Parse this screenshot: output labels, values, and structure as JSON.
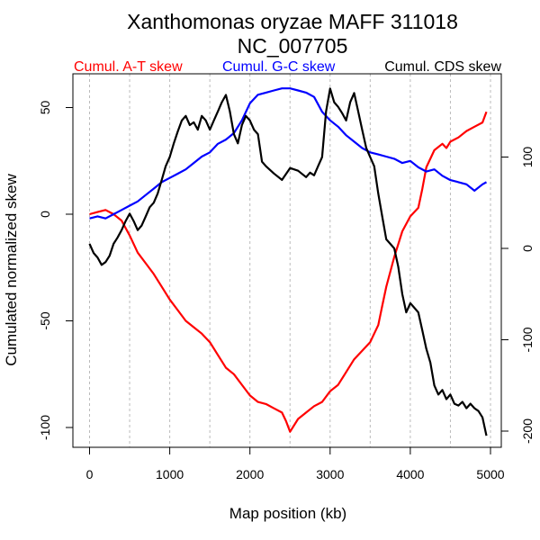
{
  "chart_data": {
    "type": "line",
    "title": "Xanthomonas oryzae MAFF 311018",
    "subtitle": "NC_007705",
    "xlabel": "Map position (kb)",
    "ylabel": "Cumulated normalized skew",
    "xlim": [
      0,
      5000
    ],
    "ylim_left": [
      -105,
      62
    ],
    "ylim_right": [
      -210,
      215
    ],
    "x_ticks": [
      "0",
      "1000",
      "2000",
      "3000",
      "4000",
      "5000"
    ],
    "x_tick_values": [
      0,
      1000,
      2000,
      3000,
      4000,
      5000
    ],
    "y_left_ticks": [
      "50",
      "0",
      "-50",
      "-100"
    ],
    "y_left_tick_values": [
      50,
      0,
      -50,
      -100
    ],
    "y_right_ticks": [
      "100",
      "0",
      "-100",
      "-200"
    ],
    "y_right_tick_values": [
      100,
      0,
      -100,
      -200
    ],
    "grid": "vertical dashed every 500 kb",
    "legend_placement": "top",
    "series": [
      {
        "name": "Cumul. A-T skew",
        "color": "#ff0000",
        "axis": "left",
        "x": [
          0,
          100,
          200,
          300,
          400,
          500,
          600,
          700,
          800,
          900,
          1000,
          1100,
          1200,
          1300,
          1400,
          1500,
          1600,
          1700,
          1800,
          1900,
          2000,
          2100,
          2200,
          2300,
          2400,
          2450,
          2500,
          2600,
          2700,
          2800,
          2900,
          3000,
          3100,
          3200,
          3300,
          3400,
          3500,
          3600,
          3650,
          3700,
          3800,
          3900,
          4000,
          4100,
          4150,
          4200,
          4300,
          4400,
          4450,
          4500,
          4600,
          4700,
          4800,
          4900,
          4950
        ],
        "values": [
          0,
          1,
          2,
          0,
          -3,
          -10,
          -18,
          -23,
          -28,
          -34,
          -40,
          -45,
          -50,
          -53,
          -56,
          -60,
          -66,
          -72,
          -75,
          -80,
          -85,
          -88,
          -89,
          -91,
          -93,
          -97,
          -102,
          -96,
          -93,
          -90,
          -88,
          -83,
          -80,
          -74,
          -68,
          -64,
          -60,
          -52,
          -43,
          -34,
          -20,
          -8,
          -1,
          3,
          12,
          22,
          30,
          33,
          31,
          34,
          36,
          39,
          41,
          43,
          48
        ]
      },
      {
        "name": "Cumul. G-C skew",
        "color": "#0000ff",
        "axis": "left",
        "x": [
          0,
          100,
          200,
          300,
          400,
          500,
          600,
          700,
          800,
          900,
          1000,
          1100,
          1200,
          1300,
          1400,
          1500,
          1600,
          1700,
          1800,
          1900,
          2000,
          2100,
          2200,
          2300,
          2400,
          2500,
          2600,
          2700,
          2800,
          2900,
          3000,
          3100,
          3200,
          3300,
          3400,
          3500,
          3600,
          3700,
          3800,
          3900,
          4000,
          4100,
          4200,
          4300,
          4400,
          4500,
          4600,
          4700,
          4800,
          4900,
          4950
        ],
        "values": [
          -2,
          -1,
          -2,
          0,
          2,
          4,
          6,
          9,
          12,
          15,
          17,
          19,
          21,
          24,
          27,
          29,
          33,
          35,
          38,
          44,
          52,
          56,
          57,
          58,
          59,
          59,
          58,
          57,
          55,
          48,
          44,
          41,
          37,
          34,
          31,
          29,
          28,
          27,
          26,
          24,
          25,
          22,
          20,
          21,
          18,
          16,
          15,
          14,
          11,
          14,
          15
        ]
      },
      {
        "name": "Cumul. CDS skew",
        "color": "#000000",
        "axis": "right",
        "x": [
          0,
          50,
          100,
          150,
          200,
          250,
          300,
          350,
          400,
          450,
          500,
          550,
          600,
          650,
          700,
          750,
          800,
          850,
          900,
          950,
          1000,
          1050,
          1100,
          1150,
          1200,
          1250,
          1300,
          1350,
          1400,
          1450,
          1500,
          1550,
          1600,
          1650,
          1700,
          1750,
          1800,
          1850,
          1900,
          1950,
          2000,
          2050,
          2100,
          2150,
          2200,
          2300,
          2400,
          2500,
          2600,
          2700,
          2750,
          2800,
          2850,
          2900,
          2950,
          3000,
          3050,
          3100,
          3150,
          3200,
          3250,
          3300,
          3350,
          3400,
          3450,
          3500,
          3550,
          3600,
          3650,
          3700,
          3750,
          3800,
          3850,
          3900,
          3950,
          4000,
          4050,
          4100,
          4150,
          4200,
          4250,
          4300,
          4350,
          4400,
          4450,
          4500,
          4550,
          4600,
          4650,
          4700,
          4750,
          4800,
          4850,
          4900,
          4950
        ],
        "values": [
          5,
          -5,
          -10,
          -18,
          -15,
          -8,
          5,
          12,
          20,
          30,
          38,
          30,
          20,
          25,
          35,
          45,
          50,
          60,
          75,
          90,
          100,
          115,
          128,
          140,
          145,
          135,
          138,
          130,
          145,
          140,
          130,
          140,
          150,
          160,
          168,
          150,
          125,
          115,
          135,
          145,
          140,
          130,
          125,
          95,
          90,
          82,
          75,
          88,
          85,
          78,
          83,
          80,
          90,
          100,
          150,
          175,
          160,
          155,
          148,
          140,
          160,
          170,
          150,
          130,
          110,
          100,
          90,
          60,
          35,
          10,
          5,
          0,
          -20,
          -50,
          -70,
          -60,
          -65,
          -70,
          -90,
          -110,
          -125,
          -150,
          -160,
          -155,
          -165,
          -160,
          -170,
          -172,
          -168,
          -175,
          -170,
          -175,
          -178,
          -185,
          -205
        ]
      }
    ]
  }
}
